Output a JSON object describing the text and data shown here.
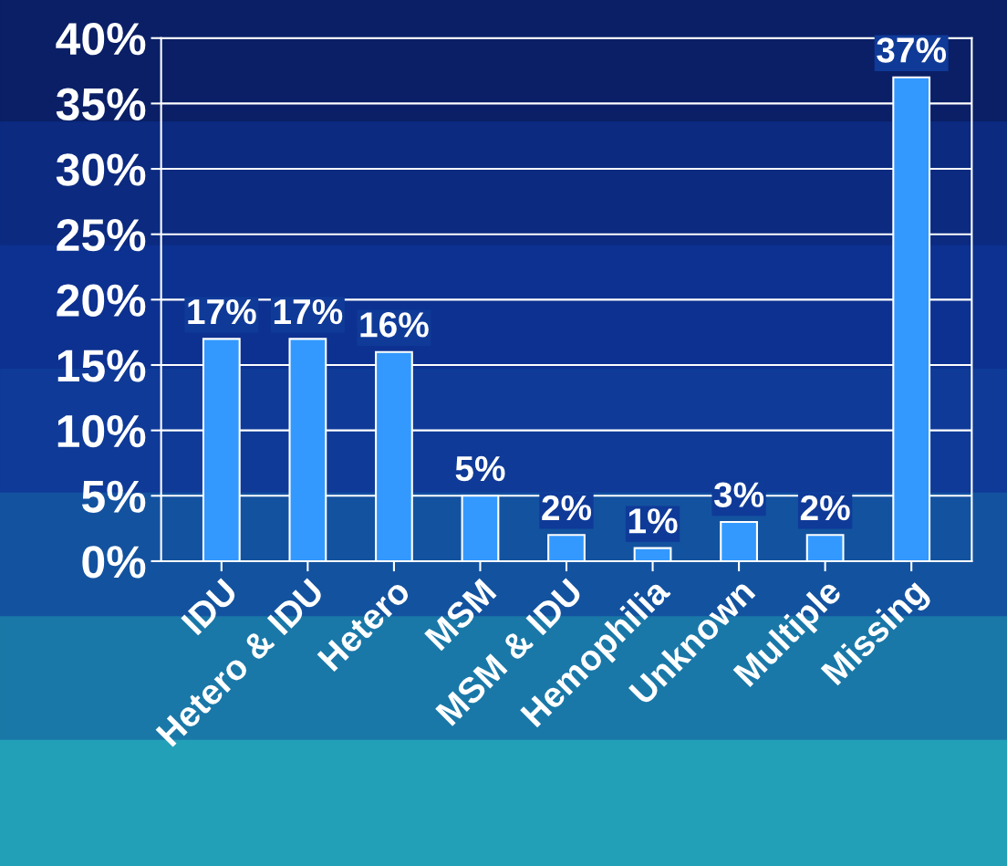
{
  "chart_data": {
    "type": "bar",
    "categories": [
      "IDU",
      "Hetero & IDU",
      "Hetero",
      "MSM",
      "MSM & IDU",
      "Hemophilia",
      "Unknown",
      "Multiple",
      "Missing"
    ],
    "values": [
      17,
      17,
      16,
      5,
      2,
      1,
      3,
      2,
      37
    ],
    "color": "#3399ff",
    "data_labels": true,
    "value_labels": [
      "17%",
      "17%",
      "16%",
      "5%",
      "2%",
      "1%",
      "3%",
      "2%",
      "37%"
    ],
    "ylim": [
      0,
      40
    ],
    "yticks": [
      {
        "value": 0,
        "label": "0%"
      },
      {
        "value": 5,
        "label": "5%"
      },
      {
        "value": 10,
        "label": "10%"
      },
      {
        "value": 15,
        "label": "15%"
      },
      {
        "value": 20,
        "label": "20%"
      },
      {
        "value": 25,
        "label": "25%"
      },
      {
        "value": 30,
        "label": "30%"
      },
      {
        "value": 35,
        "label": "35%"
      },
      {
        "value": 40,
        "label": "40%"
      }
    ],
    "grid": "y"
  }
}
